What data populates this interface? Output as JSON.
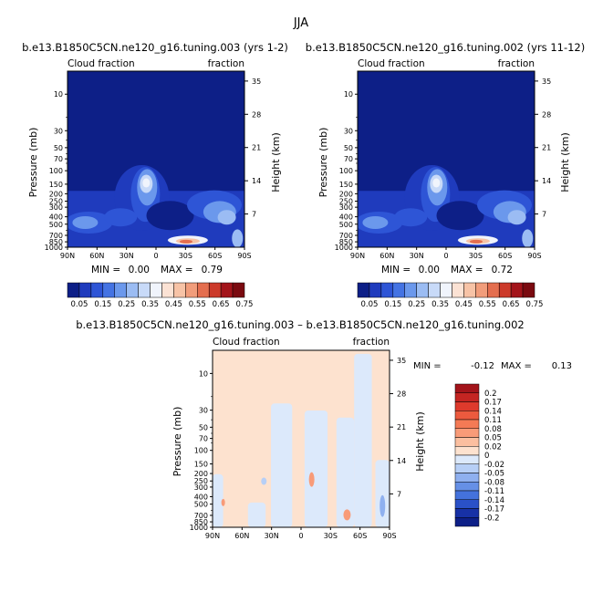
{
  "figure_title": "JJA",
  "chart_data": [
    {
      "type": "heatmap",
      "title": "b.e13.B1850C5CN.ne120_g16.tuning.003 (yrs 1-2)",
      "left_label": "Cloud fraction",
      "right_label": "fraction",
      "ylabel": "Pressure (mb)",
      "ylabel_right": "Height (km)",
      "x_ticks": [
        "90N",
        "60N",
        "30N",
        "0",
        "30S",
        "60S",
        "90S"
      ],
      "y_ticks": [
        "10",
        "30",
        "50",
        "70",
        "100",
        "150",
        "200",
        "250",
        "300",
        "400",
        "500",
        "700",
        "850",
        "1000"
      ],
      "y_ticks_right": [
        "35",
        "28",
        "21",
        "14",
        "7"
      ],
      "stats": {
        "min_label": "MIN =",
        "min": "0.00",
        "max_label": "MAX =",
        "max": "0.79"
      },
      "colorbar": {
        "labels": [
          "0.05",
          "0.15",
          "0.25",
          "0.35",
          "0.45",
          "0.55",
          "0.65",
          "0.75"
        ],
        "colors": [
          "#0d1f87",
          "#1f3bbd",
          "#2e55d6",
          "#4473e3",
          "#6b98ec",
          "#9bbcf3",
          "#c8daf8",
          "#f0f4fc",
          "#fbe2d4",
          "#f7c3a6",
          "#f19d7b",
          "#e46e4f",
          "#cc3a2a",
          "#a3141a",
          "#7a0a10"
        ]
      },
      "ylim": [
        1000,
        5
      ]
    },
    {
      "type": "heatmap",
      "title": "b.e13.B1850C5CN.ne120_g16.tuning.002 (yrs 11-12)",
      "left_label": "Cloud fraction",
      "right_label": "fraction",
      "ylabel": "Pressure (mb)",
      "ylabel_right": "Height (km)",
      "x_ticks": [
        "90N",
        "60N",
        "30N",
        "0",
        "30S",
        "60S",
        "90S"
      ],
      "y_ticks": [
        "10",
        "30",
        "50",
        "70",
        "100",
        "150",
        "200",
        "250",
        "300",
        "400",
        "500",
        "700",
        "850",
        "1000"
      ],
      "y_ticks_right": [
        "35",
        "28",
        "21",
        "14",
        "7"
      ],
      "stats": {
        "min_label": "MIN =",
        "min": "0.00",
        "max_label": "MAX =",
        "max": "0.72"
      },
      "colorbar": {
        "labels": [
          "0.05",
          "0.15",
          "0.25",
          "0.35",
          "0.45",
          "0.55",
          "0.65",
          "0.75"
        ],
        "colors": [
          "#0d1f87",
          "#1f3bbd",
          "#2e55d6",
          "#4473e3",
          "#6b98ec",
          "#9bbcf3",
          "#c8daf8",
          "#f0f4fc",
          "#fbe2d4",
          "#f7c3a6",
          "#f19d7b",
          "#e46e4f",
          "#cc3a2a",
          "#a3141a",
          "#7a0a10"
        ]
      },
      "ylim": [
        1000,
        5
      ]
    },
    {
      "type": "heatmap",
      "title": "b.e13.B1850C5CN.ne120_g16.tuning.003 – b.e13.B1850C5CN.ne120_g16.tuning.002",
      "left_label": "Cloud fraction",
      "right_label": "fraction",
      "ylabel": "Pressure (mb)",
      "ylabel_right": "Height (km)",
      "x_ticks": [
        "90N",
        "60N",
        "30N",
        "0",
        "30S",
        "60S",
        "90S"
      ],
      "y_ticks": [
        "10",
        "30",
        "50",
        "70",
        "100",
        "150",
        "200",
        "250",
        "300",
        "400",
        "500",
        "700",
        "850",
        "1000"
      ],
      "y_ticks_right": [
        "35",
        "28",
        "21",
        "14",
        "7"
      ],
      "stats": {
        "min_label": "MIN =",
        "min": "-0.12",
        "max_label": "MAX =",
        "max": "0.13"
      },
      "colorbar": {
        "labels": [
          "0.2",
          "0.17",
          "0.14",
          "0.11",
          "0.08",
          "0.05",
          "0.02",
          "0",
          "-0.02",
          "-0.05",
          "-0.08",
          "-0.11",
          "-0.14",
          "-0.17",
          "-0.2"
        ],
        "colors": [
          "#a3141a",
          "#c42522",
          "#de3a2c",
          "#ec5a3e",
          "#f47a55",
          "#f89b78",
          "#fbbfa0",
          "#fde2cf",
          "#dce9fb",
          "#b7cff6",
          "#8fb0ef",
          "#6690e6",
          "#4472dc",
          "#2a51c8",
          "#1731a6",
          "#0d1f87"
        ]
      },
      "ylim": [
        1000,
        5
      ]
    }
  ]
}
